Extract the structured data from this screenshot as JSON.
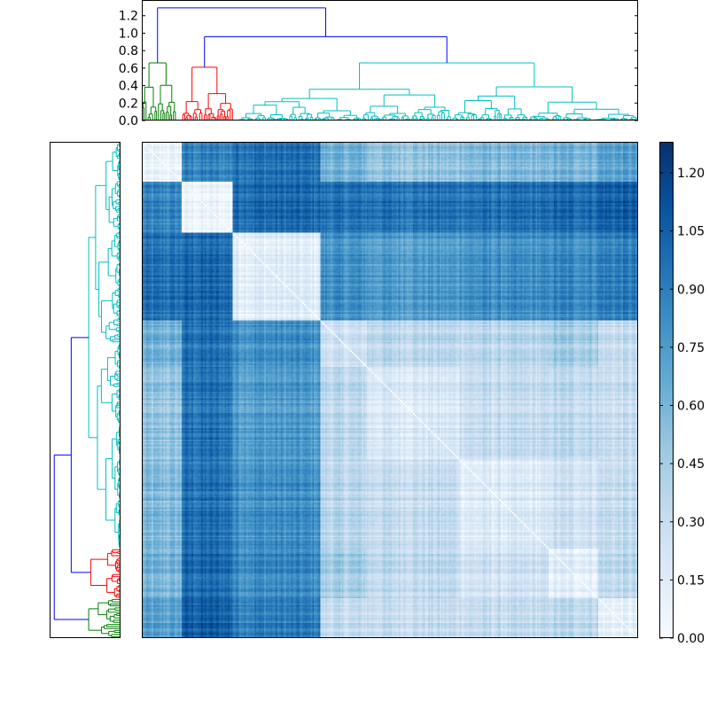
{
  "chart_data": [
    {
      "type": "dendrogram",
      "orientation": "top",
      "yticks": [
        "0.0",
        "0.2",
        "0.4",
        "0.6",
        "0.8",
        "1.0",
        "1.2"
      ],
      "ylim": [
        0,
        1.38
      ],
      "colors": {
        "cluster_a": "#008000",
        "cluster_b": "#ff0000",
        "cluster_c": "#00bfbf",
        "link": "#0000ff"
      },
      "clusters": [
        {
          "color": "cluster_a",
          "range": [
            0.0,
            0.07
          ],
          "height": 0.66
        },
        {
          "color": "cluster_b",
          "range": [
            0.08,
            0.185
          ],
          "height": 0.61
        },
        {
          "color": "cluster_c",
          "range": [
            0.19,
            1.0
          ],
          "height": 0.66
        }
      ],
      "merges": [
        {
          "height": 0.96,
          "color": "link",
          "between": [
            "cluster_b",
            "cluster_c"
          ]
        },
        {
          "height": 1.29,
          "color": "link",
          "between": [
            "cluster_a",
            "b+c"
          ]
        }
      ]
    },
    {
      "type": "dendrogram",
      "orientation": "left",
      "clusters": [
        {
          "color": "cluster_c",
          "range": [
            0.0,
            0.82
          ]
        },
        {
          "color": "cluster_b",
          "range": [
            0.82,
            0.92
          ]
        },
        {
          "color": "cluster_a",
          "range": [
            0.92,
            1.0
          ]
        }
      ]
    },
    {
      "type": "heatmap",
      "colormap": "Blues",
      "n": 300,
      "vmin": 0.0,
      "vmax": 1.28,
      "diagonal": 0.0,
      "blocks": [
        0.0,
        0.08,
        0.185,
        0.36,
        0.455,
        0.64,
        0.82,
        0.92,
        1.0
      ],
      "block_means": [
        [
          0.05,
          0.85,
          0.95,
          0.6,
          0.5,
          0.55,
          0.6,
          0.7
        ],
        [
          0.85,
          0.05,
          1.0,
          0.95,
          0.95,
          0.95,
          1.0,
          1.05
        ],
        [
          0.95,
          1.0,
          0.15,
          0.8,
          0.75,
          0.8,
          0.85,
          0.9
        ],
        [
          0.6,
          0.95,
          0.8,
          0.25,
          0.35,
          0.35,
          0.45,
          0.3
        ],
        [
          0.5,
          0.95,
          0.75,
          0.35,
          0.2,
          0.3,
          0.35,
          0.3
        ],
        [
          0.55,
          0.95,
          0.8,
          0.35,
          0.3,
          0.15,
          0.25,
          0.3
        ],
        [
          0.6,
          1.0,
          0.85,
          0.45,
          0.35,
          0.25,
          0.15,
          0.35
        ],
        [
          0.7,
          1.05,
          0.9,
          0.3,
          0.3,
          0.3,
          0.35,
          0.1
        ]
      ]
    },
    {
      "type": "colorbar",
      "ticks": [
        "0.00",
        "0.15",
        "0.30",
        "0.45",
        "0.60",
        "0.75",
        "0.90",
        "1.05",
        "1.20"
      ],
      "vmin": 0.0,
      "vmax": 1.28
    }
  ]
}
